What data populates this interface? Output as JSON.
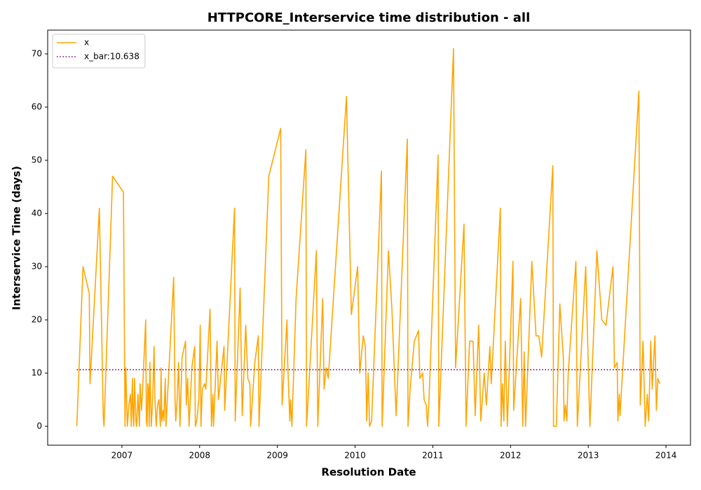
{
  "chart_data": {
    "type": "line",
    "title": "HTTPCORE_Interservice time distribution - all",
    "xlabel": "Resolution Date",
    "ylabel": "Interservice Time (days)",
    "x": [
      2006.42,
      2006.5,
      2006.58,
      2006.59,
      2006.71,
      2006.76,
      2006.77,
      2006.88,
      2007.02,
      2007.04,
      2007.05,
      2007.07,
      2007.09,
      2007.11,
      2007.12,
      2007.135,
      2007.144,
      2007.153,
      2007.162,
      2007.18,
      2007.189,
      2007.207,
      2007.225,
      2007.234,
      2007.252,
      2007.27,
      2007.306,
      2007.315,
      2007.324,
      2007.333,
      2007.342,
      2007.351,
      2007.36,
      2007.378,
      2007.396,
      2007.414,
      2007.423,
      2007.441,
      2007.459,
      2007.477,
      2007.495,
      2007.504,
      2007.513,
      2007.531,
      2007.54,
      2007.558,
      2007.567,
      2007.666,
      2007.684,
      2007.693,
      2007.711,
      2007.729,
      2007.747,
      2007.774,
      2007.819,
      2007.828,
      2007.846,
      2007.864,
      2007.9,
      2007.936,
      2007.945,
      2007.963,
      2007.99,
      2008.008,
      2008.017,
      2008.035,
      2008.062,
      2008.08,
      2008.134,
      2008.152,
      2008.17,
      2008.179,
      2008.224,
      2008.242,
      2008.314,
      2008.323,
      2008.449,
      2008.458,
      2008.521,
      2008.548,
      2008.593,
      2008.62,
      2008.647,
      2008.656,
      2008.71,
      2008.755,
      2008.764,
      2008.89,
      2009.043,
      2009.061,
      2009.124,
      2009.133,
      2009.16,
      2009.169,
      2009.187,
      2009.241,
      2009.367,
      2009.376,
      2009.502,
      2009.52,
      2009.583,
      2009.601,
      2009.628,
      2009.655,
      2009.889,
      2009.952,
      2010.033,
      2010.06,
      2010.105,
      2010.132,
      2010.15,
      2010.168,
      2010.186,
      2010.213,
      2010.339,
      2010.348,
      2010.429,
      2010.474,
      2010.528,
      2010.672,
      2010.681,
      2010.708,
      2010.762,
      2010.816,
      2010.834,
      2010.87,
      2010.888,
      2010.915,
      2010.933,
      2010.951,
      2011.068,
      2011.077,
      2011.266,
      2011.293,
      2011.401,
      2011.428,
      2011.473,
      2011.518,
      2011.545,
      2011.59,
      2011.617,
      2011.662,
      2011.689,
      2011.734,
      2011.752,
      2011.869,
      2011.878,
      2011.896,
      2011.914,
      2011.932,
      2011.959,
      2012.031,
      2012.04,
      2012.13,
      2012.157,
      2012.175,
      2012.193,
      2012.274,
      2012.328,
      2012.364,
      2012.4,
      2012.544,
      2012.553,
      2012.589,
      2012.634,
      2012.679,
      2012.688,
      2012.706,
      2012.724,
      2012.742,
      2012.841,
      2012.859,
      2012.967,
      2013.021,
      2013.111,
      2013.174,
      2013.228,
      2013.318,
      2013.336,
      2013.372,
      2013.381,
      2013.399,
      2013.408,
      2013.651,
      2013.669,
      2013.705,
      2013.732,
      2013.759,
      2013.777,
      2013.804,
      2013.822,
      2013.858,
      2013.876,
      2013.894,
      2013.921
    ],
    "series": [
      {
        "name": "x",
        "color": "#ffa500",
        "values": [
          0,
          30,
          25,
          8,
          41,
          2,
          0,
          47,
          44,
          0,
          11,
          0,
          4,
          6,
          0,
          9,
          2,
          0,
          9,
          1,
          0,
          6,
          0,
          8,
          3,
          8,
          20,
          1,
          0,
          8,
          7,
          0,
          12,
          0,
          5,
          15,
          6,
          0,
          4,
          5,
          0,
          11,
          1,
          3,
          1,
          9,
          0,
          28,
          5,
          1,
          5,
          12,
          0,
          13,
          16,
          4,
          9,
          0,
          11,
          15,
          0,
          1,
          5,
          19,
          0,
          7,
          8,
          7,
          22,
          0,
          6,
          0,
          16,
          5,
          15,
          3,
          41,
          1,
          26,
          2,
          19,
          9,
          8,
          0,
          12,
          17,
          0,
          47,
          56,
          4,
          20,
          12,
          1,
          5,
          0,
          24,
          52,
          0,
          33,
          0,
          24,
          7,
          11,
          9,
          62,
          21,
          30,
          10,
          17,
          15,
          1,
          10,
          0,
          1,
          48,
          0,
          33,
          22,
          2,
          54,
          0,
          7,
          16,
          18,
          9,
          10,
          5,
          4,
          0,
          5,
          51,
          0,
          71,
          11,
          38,
          0,
          16,
          16,
          2,
          19,
          1,
          10,
          4,
          15,
          8,
          41,
          0,
          8,
          1,
          16,
          0,
          31,
          3,
          24,
          0,
          14,
          0,
          31,
          17,
          17,
          13,
          49,
          0,
          0,
          23,
          13,
          1,
          4,
          1,
          10,
          31,
          0,
          30,
          0,
          33,
          20,
          19,
          30,
          11,
          12,
          1,
          6,
          2,
          63,
          4,
          16,
          0,
          6,
          1,
          16,
          7,
          17,
          3,
          9,
          8
        ]
      }
    ],
    "reference_line": {
      "name": "x_bar:10.638",
      "value": 10.638,
      "color": "#800080"
    },
    "xlim": [
      2006.045,
      2014.315
    ],
    "xticks": [
      2007,
      2008,
      2009,
      2010,
      2011,
      2012,
      2013,
      2014
    ],
    "ylim": [
      -3.55,
      74.47
    ],
    "yticks": [
      0,
      10,
      20,
      30,
      40,
      50,
      60,
      70
    ],
    "legend": "upper left",
    "grid": false
  }
}
